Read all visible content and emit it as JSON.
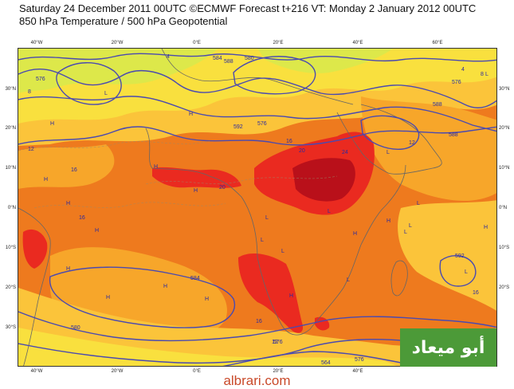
{
  "header": {
    "line1": "Saturday 24 December 2011 00UTC ©ECMWF Forecast t+216 VT: Monday 2 January 2012 00UTC",
    "line2": "850 hPa Temperature / 500 hPa Geopotential"
  },
  "axes": {
    "lon_labels": [
      "40°W",
      "20°W",
      "0°E",
      "20°E",
      "40°E",
      "60°E"
    ],
    "lat_labels": [
      "30°N",
      "20°N",
      "10°N",
      "0°N",
      "10°S",
      "20°S",
      "30°S"
    ]
  },
  "contour_labels": [
    "12",
    "16",
    "20",
    "24",
    "16",
    "12",
    "16",
    "20",
    "16",
    "12",
    "16",
    "4",
    "8",
    "4",
    "8",
    "576",
    "584",
    "588",
    "592",
    "580",
    "576",
    "588",
    "584",
    "564",
    "576",
    "576",
    "580",
    "592",
    "588",
    "576"
  ],
  "watermark": "أبو ميعاد",
  "footer": "albrari.com",
  "colors": {
    "deep_orange": "#ee7a1e",
    "orange": "#f7a62a",
    "light_orange": "#fbc43a",
    "yellow": "#f9e03e",
    "yellow_green": "#dde84a",
    "red": "#ea2a20",
    "dark_red": "#b9101a",
    "contour": "#4a4ab0",
    "coast": "#666666",
    "badge": "#4c9a38"
  }
}
